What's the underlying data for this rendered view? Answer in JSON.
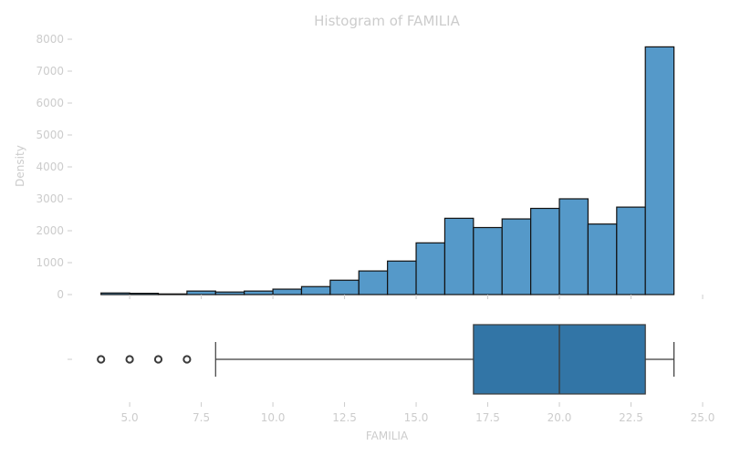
{
  "chart_data": [
    {
      "type": "bar",
      "subtype": "histogram",
      "title": "Histogram of FAMILIA",
      "ylabel": "Density",
      "xlabel": "",
      "ylim": [
        0,
        8000
      ],
      "yticks": [
        0,
        1000,
        2000,
        3000,
        4000,
        5000,
        6000,
        7000,
        8000
      ],
      "xlim": [
        3.5,
        25
      ],
      "bar_color": "#5599c9",
      "edge_color": "#111111",
      "bins": [
        {
          "x0": 4,
          "x1": 5,
          "value": 50
        },
        {
          "x0": 5,
          "x1": 6,
          "value": 40
        },
        {
          "x0": 6,
          "x1": 7,
          "value": 20
        },
        {
          "x0": 7,
          "x1": 8,
          "value": 110
        },
        {
          "x0": 8,
          "x1": 9,
          "value": 80
        },
        {
          "x0": 9,
          "x1": 10,
          "value": 110
        },
        {
          "x0": 10,
          "x1": 11,
          "value": 170
        },
        {
          "x0": 11,
          "x1": 12,
          "value": 250
        },
        {
          "x0": 12,
          "x1": 13,
          "value": 450
        },
        {
          "x0": 13,
          "x1": 14,
          "value": 740
        },
        {
          "x0": 14,
          "x1": 15,
          "value": 1050
        },
        {
          "x0": 15,
          "x1": 16,
          "value": 1620
        },
        {
          "x0": 16,
          "x1": 17,
          "value": 2390
        },
        {
          "x0": 17,
          "x1": 18,
          "value": 2100
        },
        {
          "x0": 18,
          "x1": 19,
          "value": 2370
        },
        {
          "x0": 19,
          "x1": 20,
          "value": 2700
        },
        {
          "x0": 20,
          "x1": 21,
          "value": 3000
        },
        {
          "x0": 21,
          "x1": 22,
          "value": 2210
        },
        {
          "x0": 22,
          "x1": 23,
          "value": 2740
        },
        {
          "x0": 23,
          "x1": 24,
          "value": 7760
        }
      ]
    },
    {
      "type": "box",
      "xlabel": "FAMILIA",
      "xlim": [
        3.5,
        25
      ],
      "xticks": [
        5.0,
        7.5,
        10.0,
        12.5,
        15.0,
        17.5,
        20.0,
        22.5,
        25.0
      ],
      "box_color": "#3275a6",
      "whisker_low": 8,
      "q1": 17,
      "median": 20,
      "q3": 23,
      "whisker_high": 24,
      "outliers": [
        4,
        5,
        6,
        7
      ]
    }
  ]
}
